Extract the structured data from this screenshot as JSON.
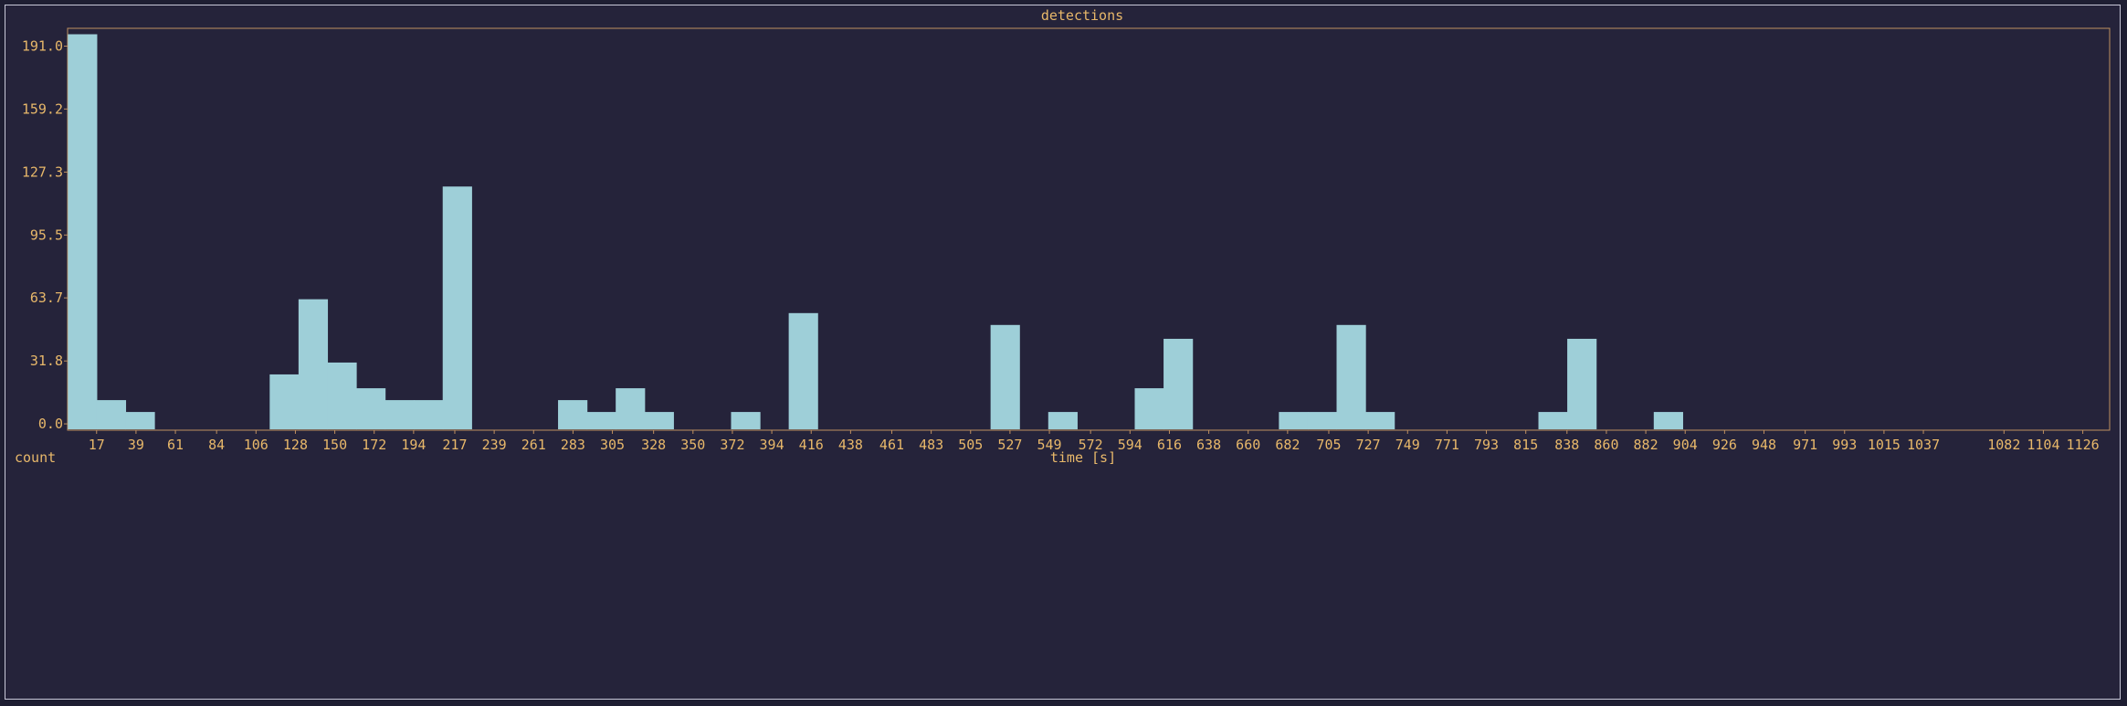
{
  "colors": {
    "background": "#25233a",
    "text": "#e8b86a",
    "axis": "#c09060",
    "bar": "#9ecfd8"
  },
  "chart_data": {
    "type": "bar",
    "title": "detections",
    "xlabel": "time [s]",
    "ylabel": "count",
    "bin_width_s": 16.1,
    "x_first_bin_center_s": 9.0,
    "x_ticks": [
      "17",
      "39",
      "61",
      "84",
      "106",
      "128",
      "150",
      "172",
      "194",
      "217",
      "239",
      "261",
      "283",
      "305",
      "328",
      "350",
      "372",
      "394",
      "416",
      "438",
      "461",
      "483",
      "505",
      "527",
      "549",
      "572",
      "594",
      "616",
      "638",
      "660",
      "682",
      "705",
      "727",
      "749",
      "771",
      "793",
      "815",
      "838",
      "860",
      "882",
      "904",
      "926",
      "948",
      "971",
      "993",
      "1015",
      "1037",
      "1082",
      "1104",
      "1126"
    ],
    "x_tick_values": [
      17,
      39,
      61,
      84,
      106,
      128,
      150,
      172,
      194,
      217,
      239,
      261,
      283,
      305,
      328,
      350,
      372,
      394,
      416,
      438,
      461,
      483,
      505,
      527,
      549,
      572,
      594,
      616,
      638,
      660,
      682,
      705,
      727,
      749,
      771,
      793,
      815,
      838,
      860,
      882,
      904,
      926,
      948,
      971,
      993,
      1015,
      1037,
      1082,
      1104,
      1126
    ],
    "y_ticks": [
      "0.0",
      "31.8",
      "63.7",
      "95.5",
      "127.3",
      "159.2",
      "191.0"
    ],
    "y_tick_values": [
      0.0,
      31.8,
      63.7,
      95.5,
      127.3,
      159.2,
      191.0
    ],
    "values": [
      197,
      12,
      6,
      0,
      0,
      0,
      0,
      25,
      63,
      31,
      18,
      12,
      12,
      120,
      0,
      0,
      0,
      12,
      6,
      18,
      6,
      0,
      0,
      6,
      0,
      56,
      0,
      0,
      0,
      0,
      0,
      0,
      50,
      0,
      6,
      0,
      0,
      18,
      43,
      0,
      0,
      0,
      6,
      6,
      50,
      6,
      0,
      0,
      0,
      0,
      0,
      6,
      43,
      0,
      0,
      6,
      0
    ],
    "xlim": [
      0.8,
      1141
    ],
    "ylim": [
      -3.2,
      200
    ],
    "grid": false,
    "legend": "none"
  }
}
